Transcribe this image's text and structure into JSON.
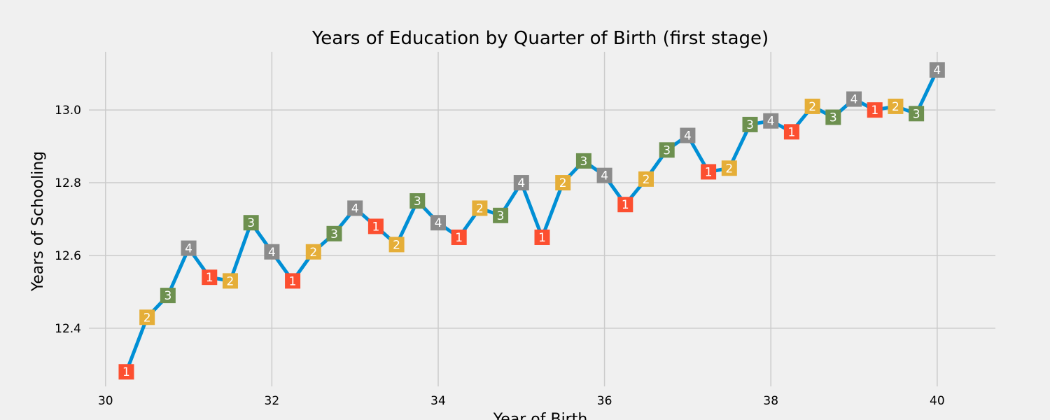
{
  "chart_data": {
    "type": "line",
    "title": "Years of Education by Quarter of Birth (first stage)",
    "xlabel": "Year of Birth",
    "ylabel": "Years of Schooling",
    "xlim": [
      29.8,
      40.7
    ],
    "ylim": [
      12.24,
      13.16
    ],
    "xticks": [
      30,
      32,
      34,
      36,
      38,
      40
    ],
    "xtick_labels": [
      "30",
      "32",
      "34",
      "36",
      "38",
      "40"
    ],
    "yticks": [
      12.4,
      12.6,
      12.8,
      13.0
    ],
    "ytick_labels": [
      "12.4",
      "12.6",
      "12.8",
      "13.0"
    ],
    "grid": true,
    "line_color": "#008fd5",
    "quarter_colors": {
      "1": "#fc4f30",
      "2": "#e5ae38",
      "3": "#6d904f",
      "4": "#8b8b8b"
    },
    "series": [
      {
        "x": [
          30.25,
          30.5,
          30.75,
          31.0,
          31.25,
          31.5,
          31.75,
          32.0,
          32.25,
          32.5,
          32.75,
          33.0,
          33.25,
          33.5,
          33.75,
          34.0,
          34.25,
          34.5,
          34.75,
          35.0,
          35.25,
          35.5,
          35.75,
          36.0,
          36.25,
          36.5,
          36.75,
          37.0,
          37.25,
          37.5,
          37.75,
          38.0,
          38.25,
          38.5,
          38.75,
          39.0,
          39.25,
          39.5,
          39.75,
          40.0
        ],
        "y": [
          12.28,
          12.43,
          12.49,
          12.62,
          12.54,
          12.53,
          12.69,
          12.61,
          12.53,
          12.61,
          12.66,
          12.73,
          12.68,
          12.63,
          12.75,
          12.69,
          12.65,
          12.73,
          12.71,
          12.8,
          12.65,
          12.8,
          12.86,
          12.82,
          12.74,
          12.81,
          12.89,
          12.93,
          12.83,
          12.84,
          12.96,
          12.97,
          12.94,
          13.01,
          12.98,
          13.03,
          13.0,
          13.01,
          12.99,
          13.11
        ],
        "quarter": [
          "1",
          "2",
          "3",
          "4",
          "1",
          "2",
          "3",
          "4",
          "1",
          "2",
          "3",
          "4",
          "1",
          "2",
          "3",
          "4",
          "1",
          "2",
          "3",
          "4",
          "1",
          "2",
          "3",
          "4",
          "1",
          "2",
          "3",
          "4",
          "1",
          "2",
          "3",
          "4",
          "1",
          "2",
          "3",
          "4",
          "1",
          "2",
          "3",
          "4"
        ]
      }
    ]
  }
}
